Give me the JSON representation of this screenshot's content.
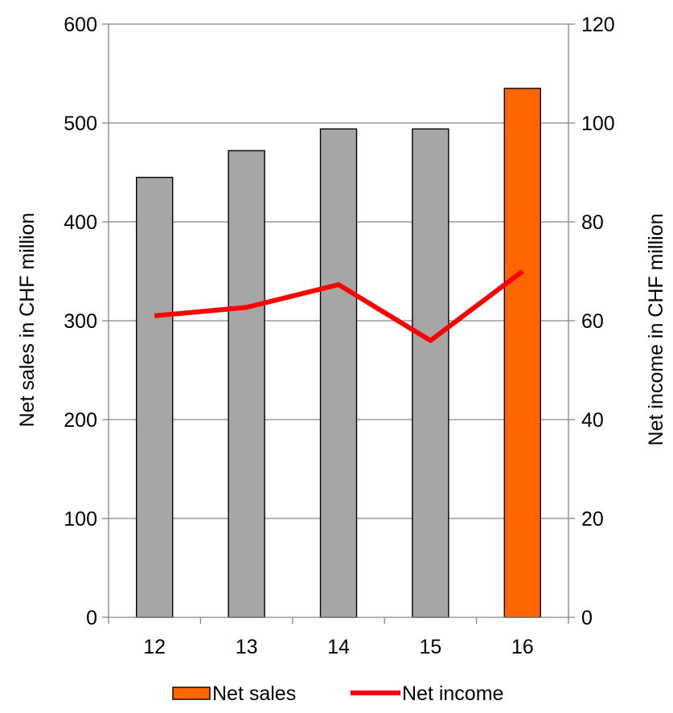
{
  "chart_data": {
    "type": "bar",
    "categories": [
      "12",
      "13",
      "14",
      "15",
      "16"
    ],
    "series": [
      {
        "name": "Net sales",
        "type": "bar",
        "axis": "left",
        "values": [
          445,
          472,
          494,
          494,
          535
        ],
        "colors": [
          "#a6a6a6",
          "#a6a6a6",
          "#a6a6a6",
          "#a6a6a6",
          "#ff6600"
        ]
      },
      {
        "name": "Net income",
        "type": "line",
        "axis": "right",
        "values": [
          61,
          62.7,
          67.3,
          56,
          70
        ],
        "color": "#ff0000"
      }
    ],
    "ylabel": "Net sales in CHF million",
    "y2label": "Net income in CHF million",
    "ylim": [
      0,
      600
    ],
    "y2lim": [
      0,
      120
    ],
    "yticks": [
      "0",
      "100",
      "200",
      "300",
      "400",
      "500",
      "600"
    ],
    "y2ticks": [
      "0",
      "20",
      "40",
      "60",
      "80",
      "100",
      "120"
    ],
    "grid": true,
    "legend_position": "bottom",
    "legend_entries": [
      {
        "label": "Net sales",
        "color": "#ff6600",
        "marker": "box"
      },
      {
        "label": "Net income",
        "color": "#ff0000",
        "marker": "line"
      }
    ]
  }
}
